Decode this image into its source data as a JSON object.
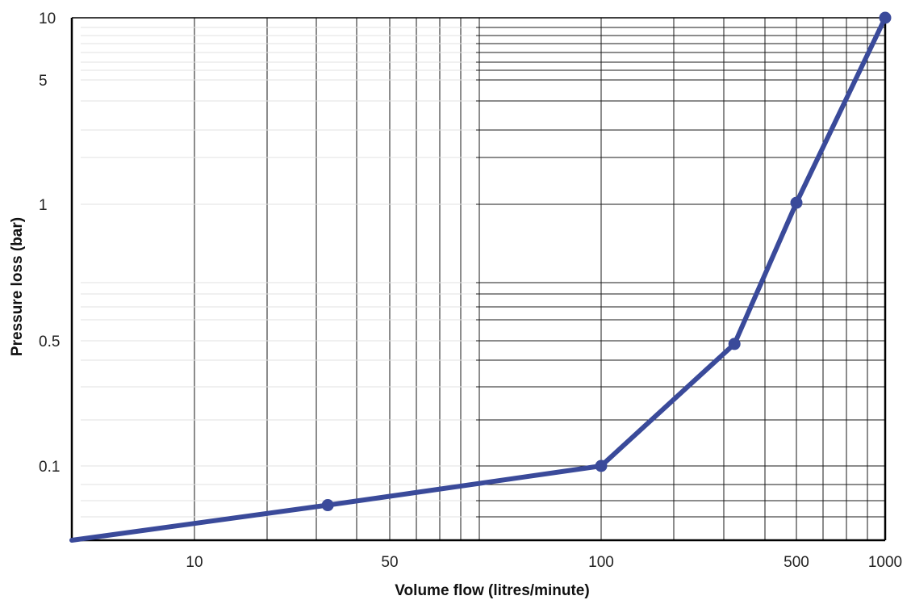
{
  "chart_data": {
    "type": "line",
    "title": "",
    "xlabel": "Volume flow (litres/minute)",
    "ylabel": "Pressure loss (bar)",
    "x_scale": "log",
    "y_scale": "log",
    "x_ticks": [
      {
        "label": "10",
        "value": 10
      },
      {
        "label": "50",
        "value": 50
      },
      {
        "label": "100",
        "value": 100
      },
      {
        "label": "500",
        "value": 500
      },
      {
        "label": "1000",
        "value": 1000
      }
    ],
    "y_ticks": [
      {
        "label": "0.1",
        "value": 0.1
      },
      {
        "label": "0.5",
        "value": 0.5
      },
      {
        "label": "1",
        "value": 1
      },
      {
        "label": "5",
        "value": 5
      },
      {
        "label": "10",
        "value": 10
      }
    ],
    "grid": true,
    "legend": "none",
    "series": [
      {
        "color": "#3a4a9a",
        "x": [
          5,
          30,
          100,
          300,
          500,
          1000
        ],
        "y": [
          0.03,
          0.053,
          0.1,
          0.48,
          1.02,
          10
        ],
        "markers": [
          false,
          true,
          true,
          true,
          true,
          true
        ]
      }
    ]
  }
}
